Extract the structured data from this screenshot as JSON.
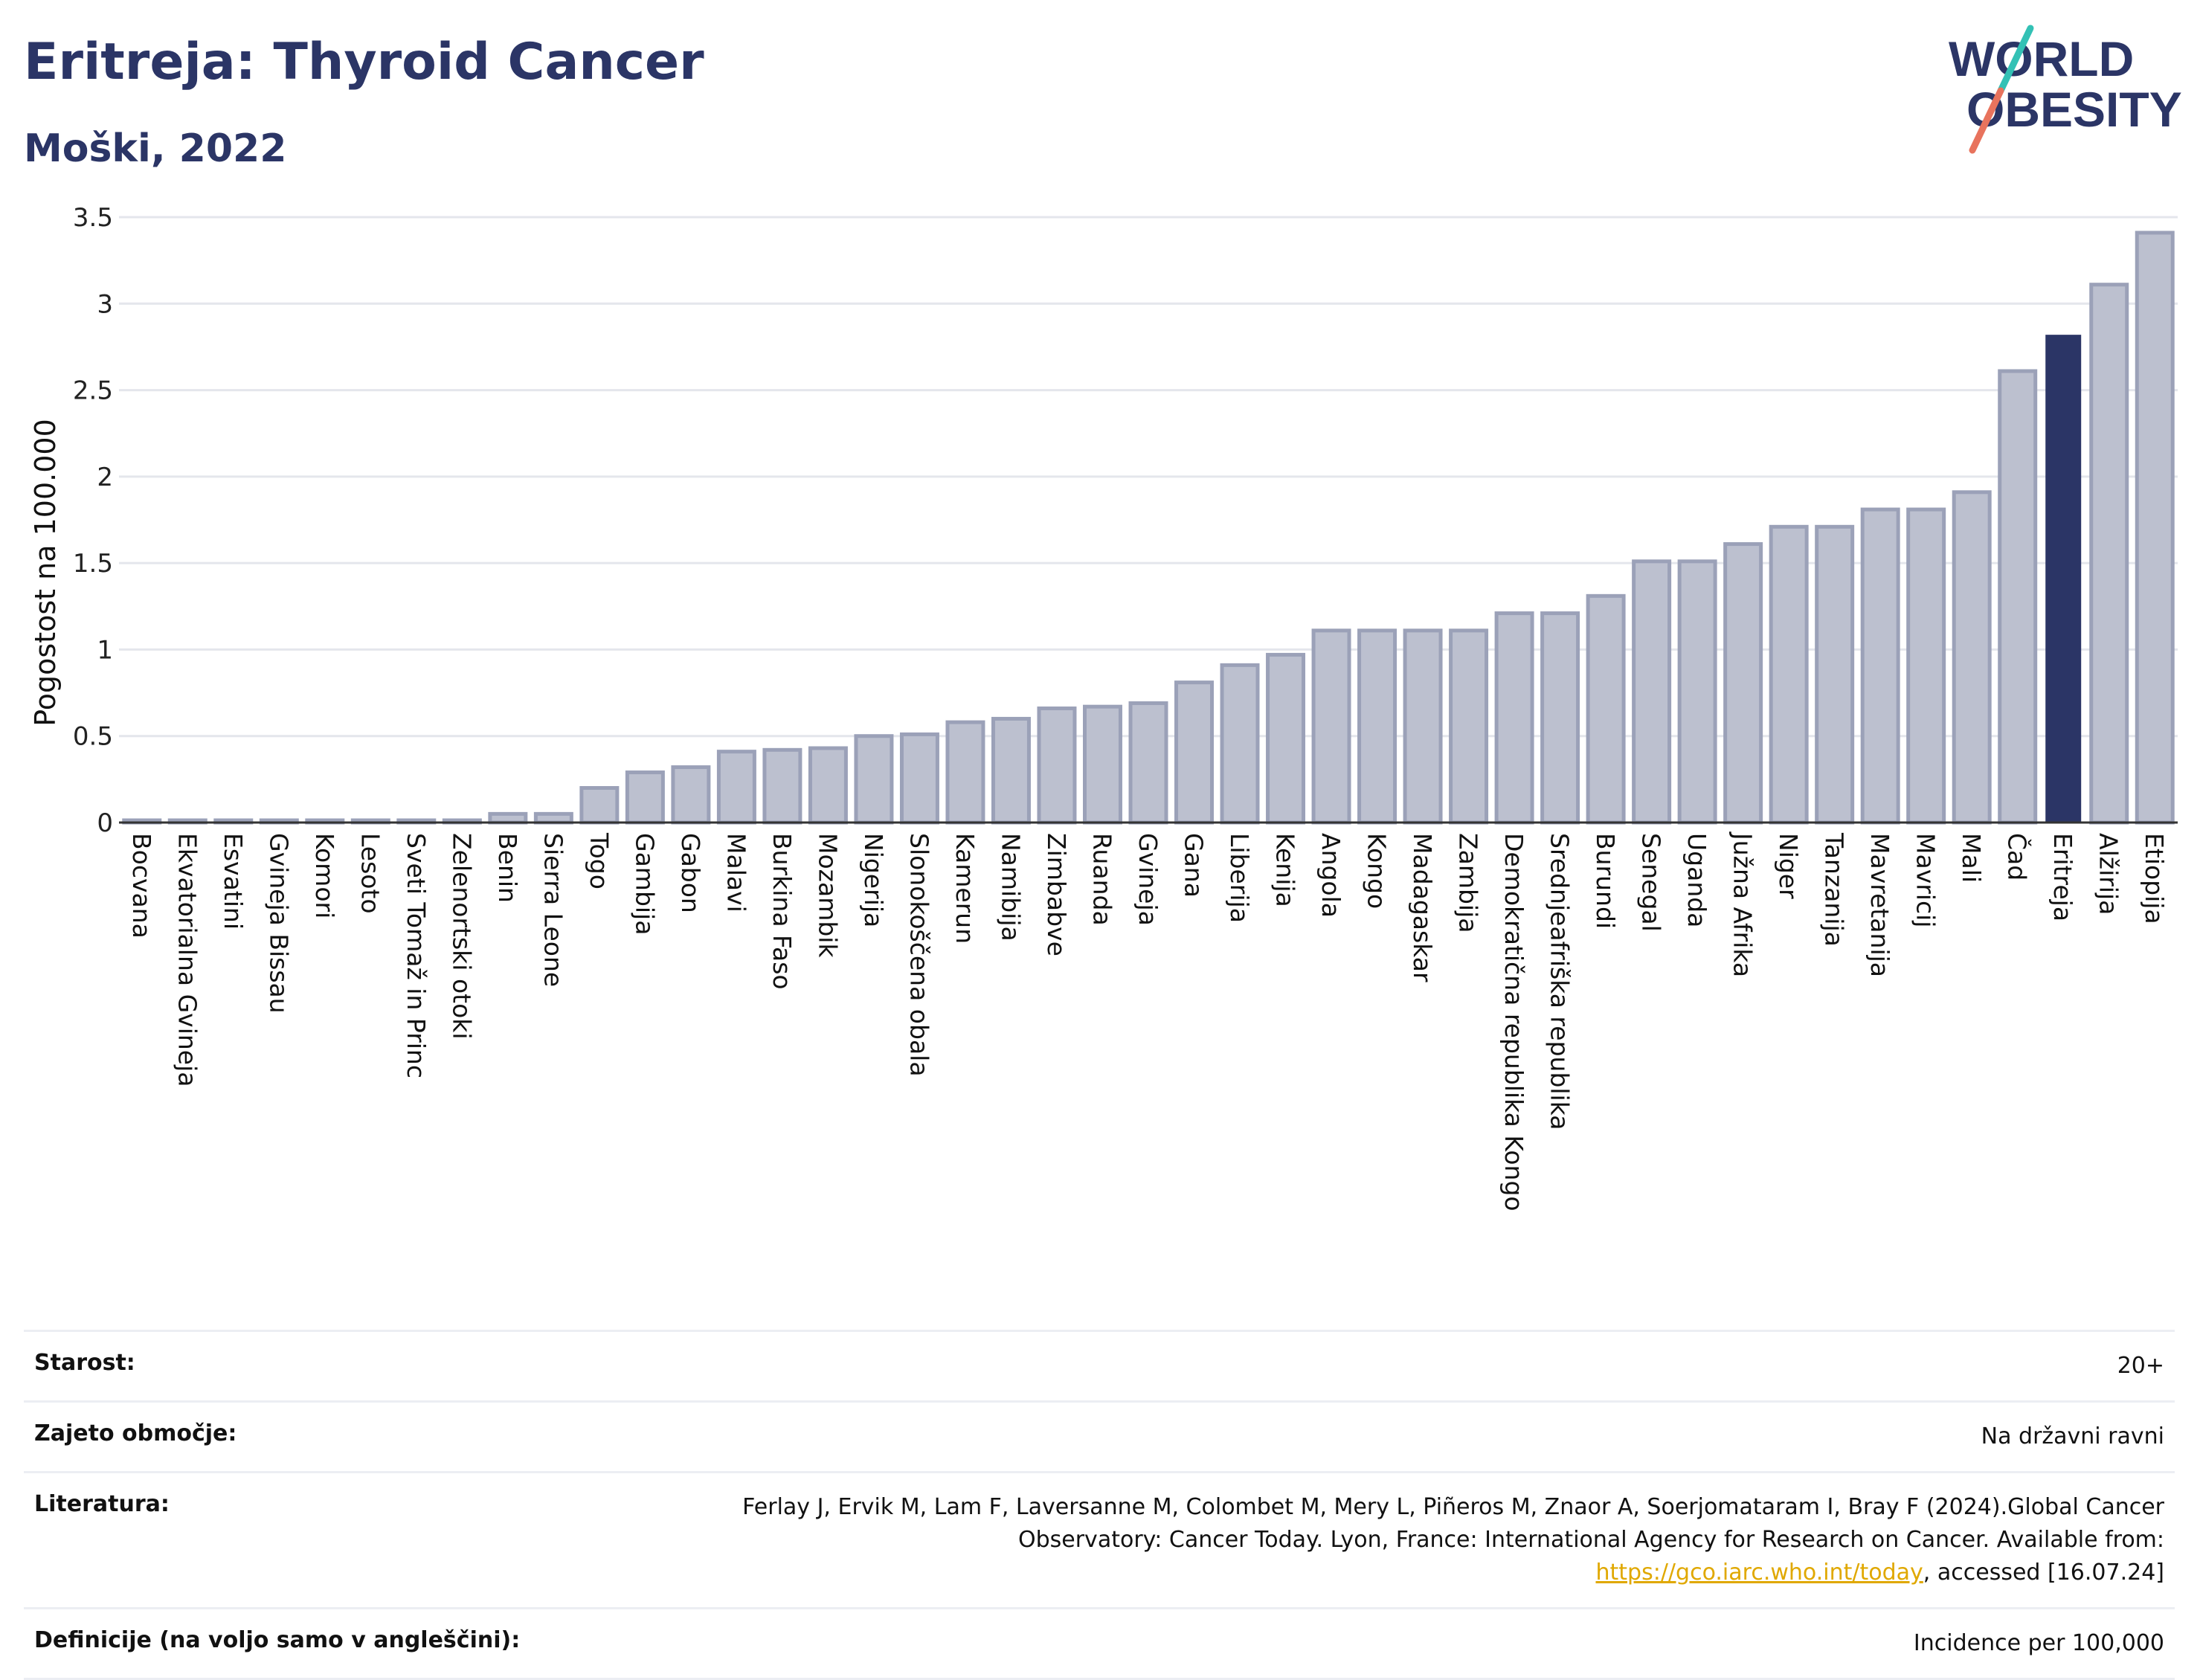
{
  "title": "Eritreja: Thyroid Cancer",
  "subtitle": "Moški, 2022",
  "logo": {
    "line1": "WORLD",
    "line2": "OBESITY"
  },
  "colors": {
    "highlight": "#2b3566",
    "bar": "#bcc0cf",
    "bar_edge": "#9ba1b8",
    "title": "#2b3566"
  },
  "chart_data": {
    "type": "bar",
    "ylabel": "Pogostost na 100.000",
    "ylim": [
      0,
      3.5
    ],
    "yticks": [
      0,
      0.5,
      1,
      1.5,
      2,
      2.5,
      3,
      3.5
    ],
    "ytick_labels": [
      "0",
      "0.5",
      "1",
      "1.5",
      "2",
      "2.5",
      "3",
      "3.5"
    ],
    "grid": true,
    "highlight": "Eritreja",
    "categories": [
      "Bocvana",
      "Ekvatorialna Gvineja",
      "Esvatini",
      "Gvineja Bissau",
      "Komori",
      "Lesoto",
      "Sveti Tomaž in Princ",
      "Zelenortski otoki",
      "Benin",
      "Sierra Leone",
      "Togo",
      "Gambija",
      "Gabon",
      "Malavi",
      "Burkina Faso",
      "Mozambik",
      "Nigerija",
      "Slonokoščena obala",
      "Kamerun",
      "Namibija",
      "Zimbabve",
      "Ruanda",
      "Gvineja",
      "Gana",
      "Liberija",
      "Kenija",
      "Angola",
      "Kongo",
      "Madagaskar",
      "Zambija",
      "Demokratična republika Kongo",
      "Srednjeafriška republika",
      "Burundi",
      "Senegal",
      "Uganda",
      "Južna Afrika",
      "Niger",
      "Tanzanija",
      "Mavretanija",
      "Mavricij",
      "Mali",
      "Čad",
      "Eritreja",
      "Alžirija",
      "Etiopija"
    ],
    "values": [
      0.01,
      0.01,
      0.01,
      0.01,
      0.01,
      0.01,
      0.01,
      0.01,
      0.05,
      0.05,
      0.2,
      0.29,
      0.32,
      0.41,
      0.42,
      0.43,
      0.5,
      0.51,
      0.58,
      0.6,
      0.66,
      0.67,
      0.69,
      0.81,
      0.91,
      0.97,
      1.11,
      1.11,
      1.11,
      1.11,
      1.21,
      1.21,
      1.31,
      1.51,
      1.51,
      1.61,
      1.71,
      1.71,
      1.81,
      1.81,
      1.91,
      2.61,
      2.82,
      3.11,
      3.41
    ]
  },
  "info": {
    "age_label": "Starost:",
    "age_value": "20+",
    "coverage_label": "Zajeto območje:",
    "coverage_value": "Na državni ravni",
    "lit_label": "Literatura:",
    "lit_text1": "Ferlay J, Ervik M, Lam F, Laversanne M, Colombet M, Mery L, Piñeros M, Znaor A, Soerjomataram I, Bray F (2024).Global Cancer Observatory: Cancer Today. Lyon, France: International Agency for Research on Cancer. Available from: ",
    "lit_link": "https://gco.iarc.who.int/today",
    "lit_text2": ", accessed [16.07.24]",
    "def_label": "Definicije (na voljo samo v angleščini):",
    "def_value": "Incidence per 100,000"
  }
}
